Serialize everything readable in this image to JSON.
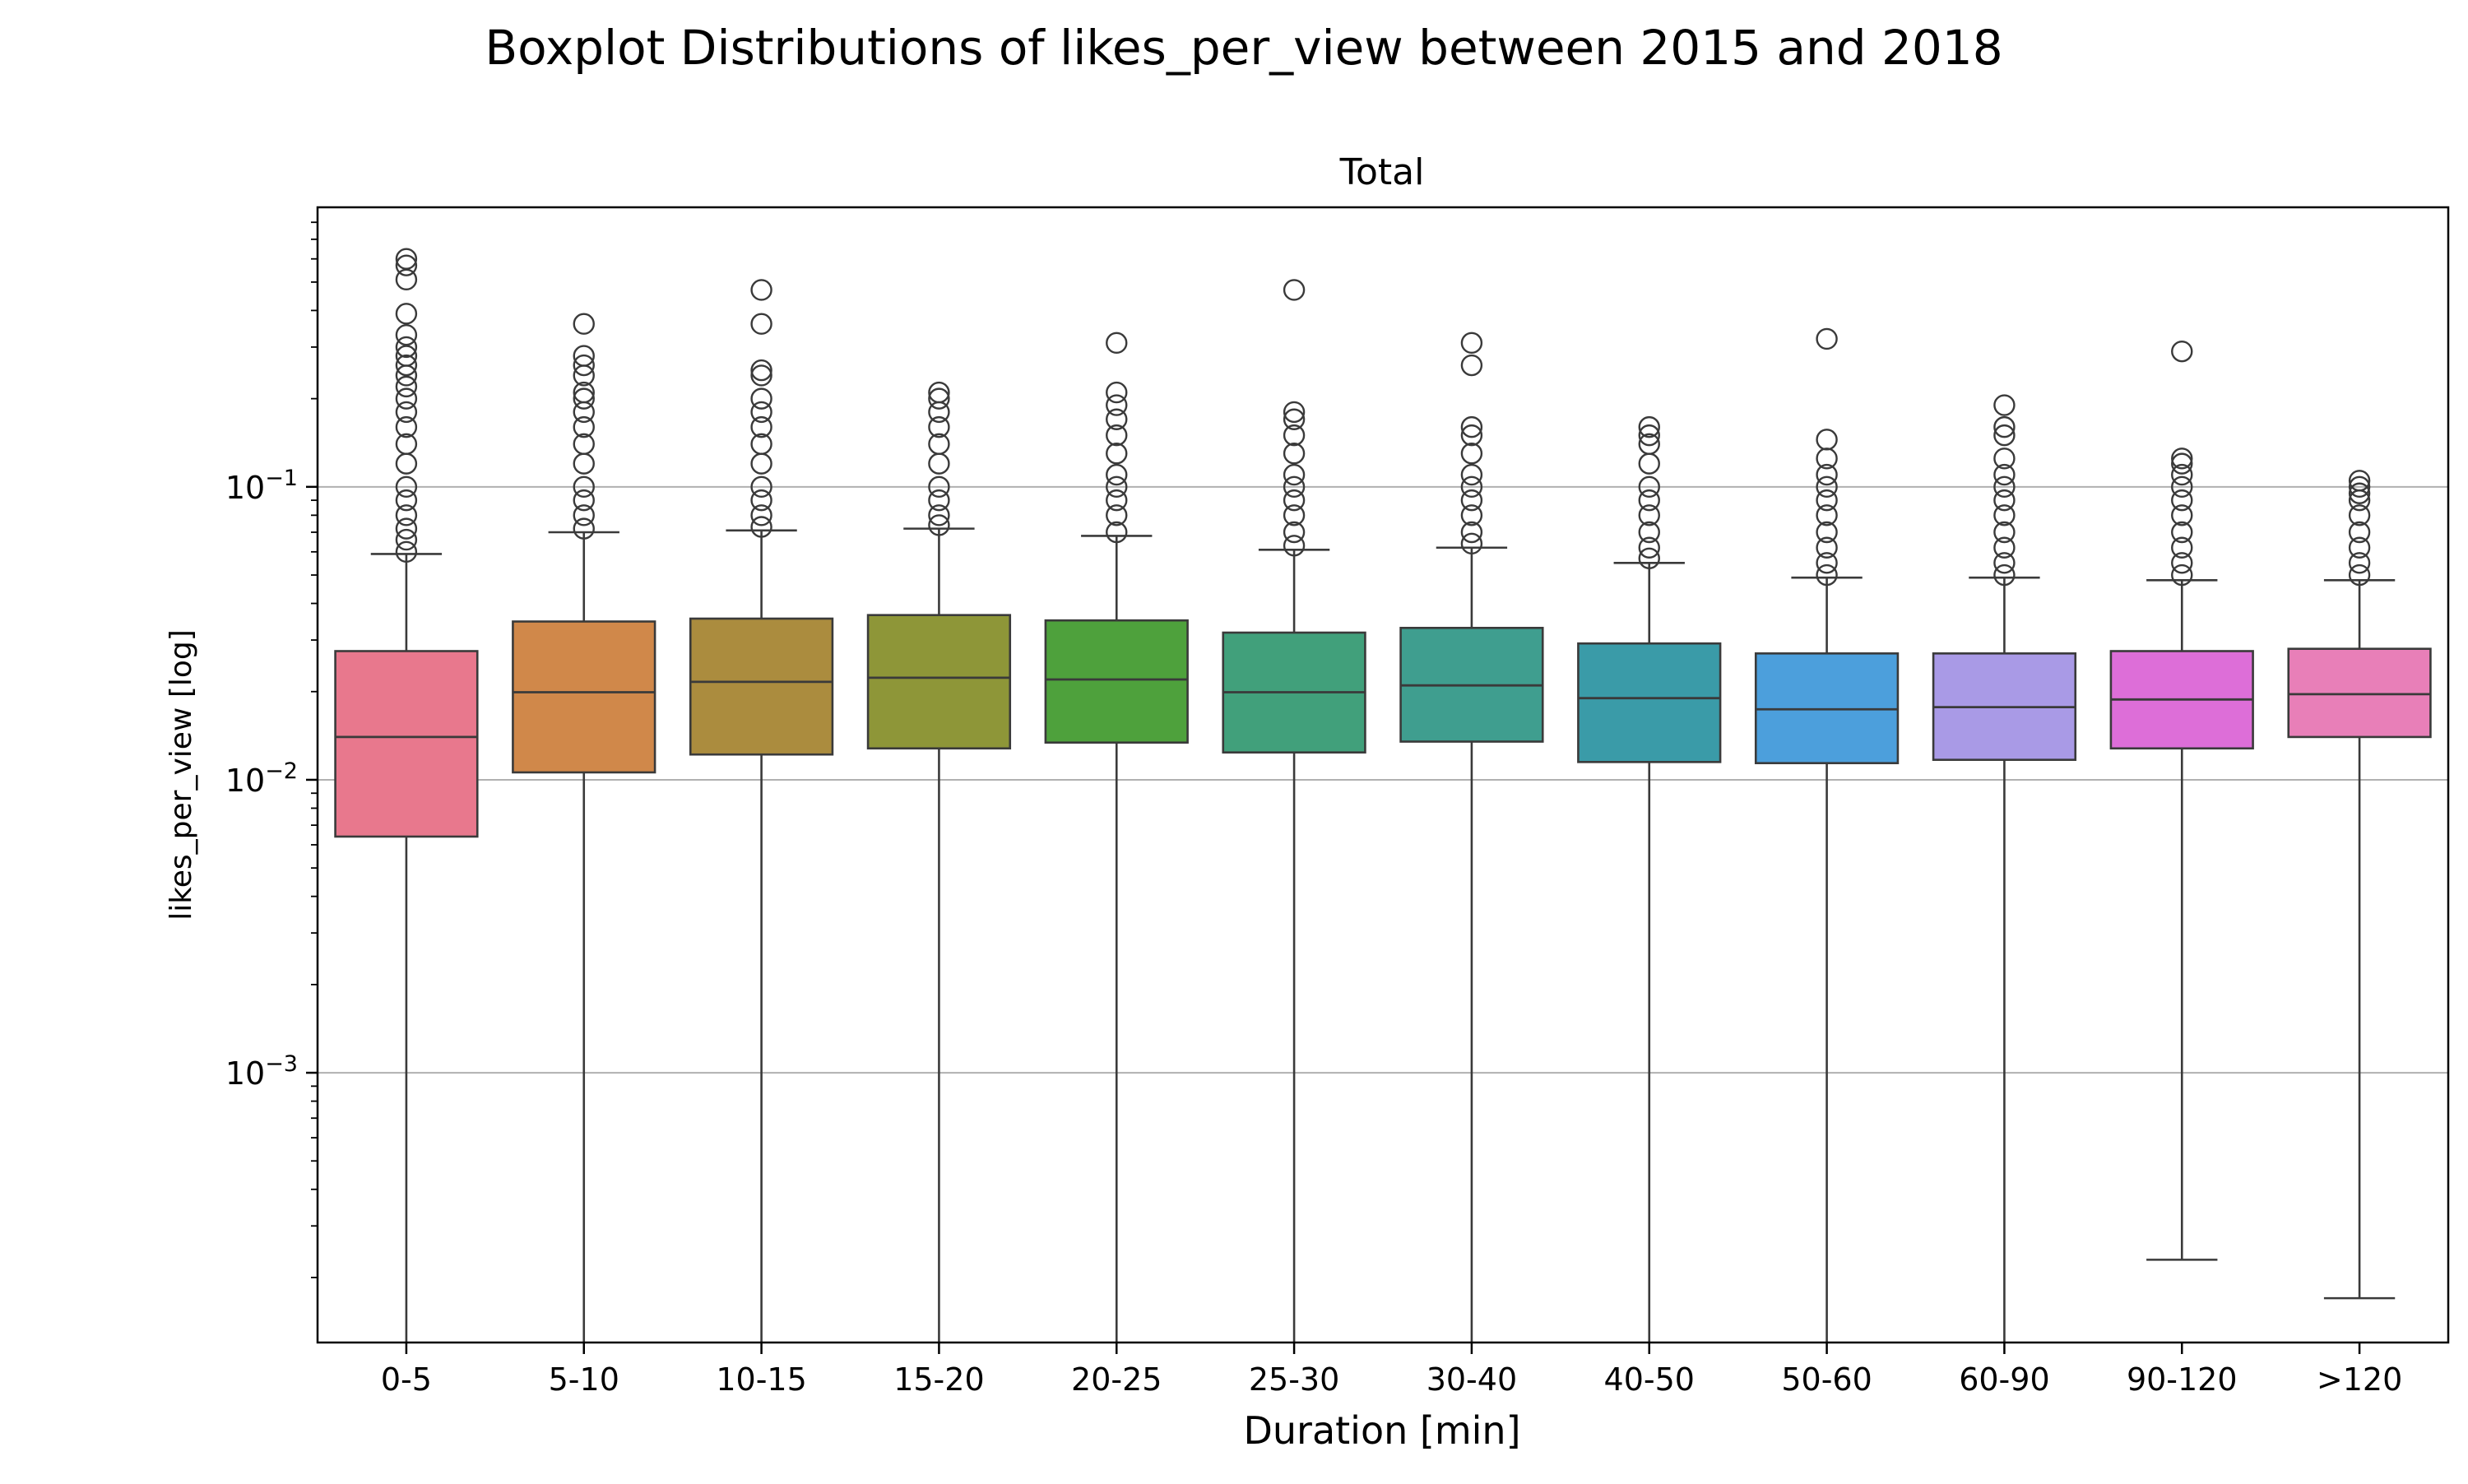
{
  "chart_data": {
    "type": "boxplot",
    "title": "Boxplot Distributions of likes_per_view between 2015 and 2018",
    "subtitle": "Total",
    "xlabel": "Duration [min]",
    "ylabel": "likes_per_view [log]",
    "yscale": "log",
    "ylim": [
      0.00012,
      0.9
    ],
    "yticks": [
      {
        "value": 0.001,
        "base": "10",
        "exp": "−3"
      },
      {
        "value": 0.01,
        "base": "10",
        "exp": "−2"
      },
      {
        "value": 0.1,
        "base": "10",
        "exp": "−1"
      }
    ],
    "grid": "y-major",
    "categories": [
      "0-5",
      "5-10",
      "10-15",
      "15-20",
      "20-25",
      "25-30",
      "30-40",
      "40-50",
      "50-60",
      "60-90",
      "90-120",
      ">120"
    ],
    "colors": [
      "#e8788d",
      "#d0884a",
      "#ab8c3e",
      "#8e9638",
      "#4ea13c",
      "#41a07b",
      "#3f9e8f",
      "#3a9ba8",
      "#4c9fdc",
      "#a99ae6",
      "#dd6ed8",
      "#e87fb8"
    ],
    "boxes": [
      {
        "whislo": 0.0,
        "q1": 0.0064,
        "med": 0.014,
        "q3": 0.0275,
        "whishi": 0.059,
        "fliers": [
          0.6,
          0.57,
          0.51,
          0.39,
          0.33,
          0.3,
          0.28,
          0.26,
          0.24,
          0.22,
          0.2,
          0.18,
          0.16,
          0.14,
          0.12,
          0.1,
          0.09,
          0.08,
          0.072,
          0.066,
          0.06
        ]
      },
      {
        "whislo": 0.0,
        "q1": 0.0106,
        "med": 0.0199,
        "q3": 0.0347,
        "whishi": 0.07,
        "fliers": [
          0.36,
          0.28,
          0.26,
          0.24,
          0.21,
          0.2,
          0.18,
          0.16,
          0.14,
          0.12,
          0.1,
          0.09,
          0.08,
          0.072
        ]
      },
      {
        "whislo": 0.0,
        "q1": 0.0122,
        "med": 0.0216,
        "q3": 0.0355,
        "whishi": 0.071,
        "fliers": [
          0.47,
          0.36,
          0.25,
          0.24,
          0.2,
          0.18,
          0.16,
          0.14,
          0.12,
          0.1,
          0.09,
          0.08,
          0.073
        ]
      },
      {
        "whislo": 0.0,
        "q1": 0.0128,
        "med": 0.0223,
        "q3": 0.0365,
        "whishi": 0.072,
        "fliers": [
          0.21,
          0.2,
          0.18,
          0.16,
          0.14,
          0.12,
          0.1,
          0.09,
          0.08,
          0.074
        ]
      },
      {
        "whislo": 0.0,
        "q1": 0.0134,
        "med": 0.022,
        "q3": 0.035,
        "whishi": 0.068,
        "fliers": [
          0.31,
          0.21,
          0.19,
          0.17,
          0.15,
          0.13,
          0.11,
          0.1,
          0.09,
          0.08,
          0.07
        ]
      },
      {
        "whislo": 0.0,
        "q1": 0.0124,
        "med": 0.0199,
        "q3": 0.0318,
        "whishi": 0.061,
        "fliers": [
          0.47,
          0.18,
          0.17,
          0.15,
          0.13,
          0.11,
          0.1,
          0.09,
          0.08,
          0.07,
          0.063
        ]
      },
      {
        "whislo": 0.0,
        "q1": 0.0135,
        "med": 0.021,
        "q3": 0.033,
        "whishi": 0.062,
        "fliers": [
          0.31,
          0.26,
          0.16,
          0.15,
          0.13,
          0.11,
          0.1,
          0.09,
          0.08,
          0.07,
          0.064
        ]
      },
      {
        "whislo": 0.0,
        "q1": 0.0115,
        "med": 0.019,
        "q3": 0.0292,
        "whishi": 0.055,
        "fliers": [
          0.16,
          0.15,
          0.14,
          0.12,
          0.1,
          0.09,
          0.08,
          0.07,
          0.062,
          0.057
        ]
      },
      {
        "whislo": 0.0,
        "q1": 0.0114,
        "med": 0.0174,
        "q3": 0.027,
        "whishi": 0.049,
        "fliers": [
          0.32,
          0.145,
          0.125,
          0.11,
          0.1,
          0.09,
          0.08,
          0.07,
          0.062,
          0.055,
          0.05
        ]
      },
      {
        "whislo": 0.0,
        "q1": 0.0117,
        "med": 0.0177,
        "q3": 0.027,
        "whishi": 0.049,
        "fliers": [
          0.19,
          0.16,
          0.15,
          0.125,
          0.11,
          0.1,
          0.09,
          0.08,
          0.07,
          0.062,
          0.055,
          0.05
        ]
      },
      {
        "whislo": 0.00023,
        "q1": 0.0128,
        "med": 0.0188,
        "q3": 0.0275,
        "whishi": 0.048,
        "fliers": [
          0.29,
          0.125,
          0.12,
          0.11,
          0.1,
          0.09,
          0.08,
          0.07,
          0.062,
          0.055,
          0.05
        ]
      },
      {
        "whislo": 0.00017,
        "q1": 0.014,
        "med": 0.0196,
        "q3": 0.028,
        "whishi": 0.048,
        "fliers": [
          0.105,
          0.1,
          0.095,
          0.09,
          0.08,
          0.07,
          0.062,
          0.055,
          0.05
        ]
      }
    ]
  }
}
